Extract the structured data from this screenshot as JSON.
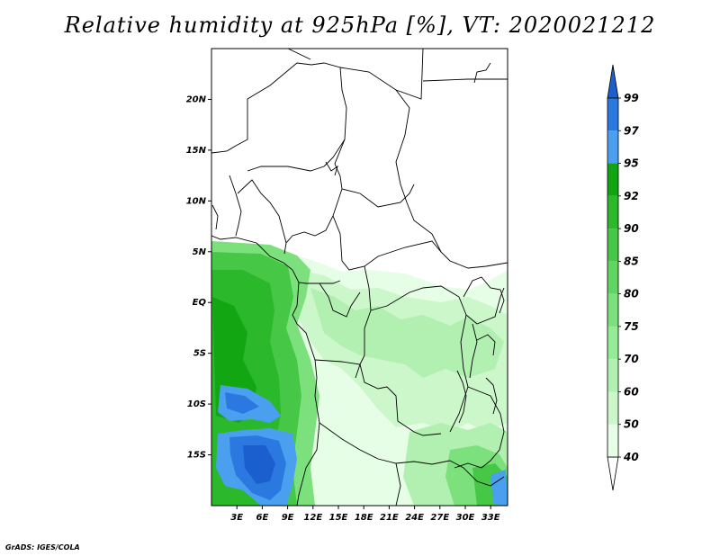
{
  "title": "Relative humidity at 925hPa [%], VT: 2020021212",
  "credit": "GrADS: IGES/COLA",
  "map": {
    "lat_labels": [
      "20N",
      "15N",
      "10N",
      "5N",
      "EQ",
      "5S",
      "10S",
      "15S"
    ],
    "lat_values": [
      20,
      15,
      10,
      5,
      0,
      -5,
      -10,
      -15
    ],
    "lon_labels": [
      "3E",
      "6E",
      "9E",
      "12E",
      "15E",
      "18E",
      "21E",
      "24E",
      "27E",
      "30E",
      "33E"
    ],
    "lon_values": [
      3,
      6,
      9,
      12,
      15,
      18,
      21,
      24,
      27,
      30,
      33
    ],
    "lon_range": [
      0,
      35
    ],
    "lat_range": [
      -20,
      25
    ]
  },
  "colorbar": {
    "labels": [
      "40",
      "50",
      "60",
      "70",
      "75",
      "80",
      "85",
      "90",
      "92",
      "95",
      "97",
      "99"
    ],
    "colors": [
      "#ffffff",
      "#e6fde6",
      "#cbf7cb",
      "#b1f0b1",
      "#96eb96",
      "#7ce07c",
      "#61d561",
      "#46c846",
      "#2bb82b",
      "#11a411",
      "#4aa0ee",
      "#2b79e0",
      "#1b5fcf"
    ]
  }
}
